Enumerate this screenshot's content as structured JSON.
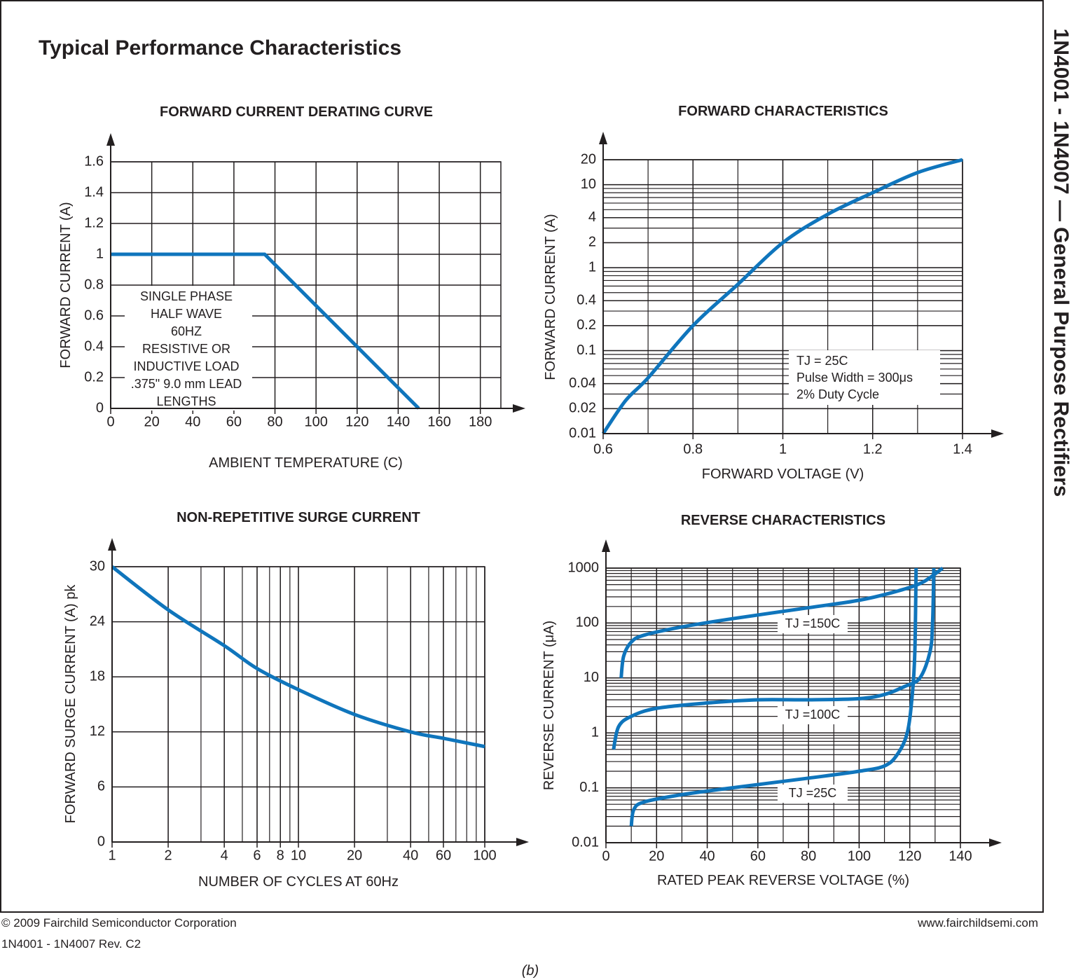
{
  "title": "Typical Performance Characteristics",
  "side_title": "1N4001 - 1N4007 — General Purpose Rectifiers",
  "footer": {
    "copyright": "© 2009 Fairchild Semiconductor Corporation",
    "revision": "1N4001 - 1N4007 Rev. C2",
    "website": "www.fairchildsemi.com"
  },
  "caption": "(b)",
  "chart_data": [
    {
      "type": "line",
      "title": "FORWARD CURRENT DERATING CURVE",
      "x_label": "AMBIENT TEMPERATURE (C)",
      "y_label": "FORWARD CURRENT (A)",
      "x": [
        0,
        75,
        150
      ],
      "values": [
        1,
        1,
        0
      ],
      "color": "#0f75bc",
      "smooth": false,
      "xlim": [
        0,
        190
      ],
      "xticks": [
        0,
        20,
        40,
        60,
        80,
        100,
        120,
        140,
        160,
        180
      ],
      "ylim": [
        0,
        1.6
      ],
      "yticks": [
        0,
        0.2,
        0.4,
        0.6,
        0.8,
        1,
        1.2,
        1.4,
        1.6
      ],
      "grid": true,
      "minor_grid": false,
      "annotation": [
        "SINGLE PHASE",
        "HALF WAVE",
        "60HZ",
        "RESISTIVE OR",
        "INDUCTIVE LOAD",
        ".375\" 9.0 mm LEAD",
        "LENGTHS"
      ]
    },
    {
      "type": "line",
      "title": "FORWARD CHARACTERISTICS",
      "x_label": "FORWARD VOLTAGE (V)",
      "y_label": "FORWARD CURRENT (A)",
      "x": [
        0.6,
        0.65,
        0.7,
        0.8,
        0.9,
        1,
        1.1,
        1.2,
        1.3,
        1.4
      ],
      "values": [
        0.01,
        0.025,
        0.047,
        0.2,
        0.63,
        2,
        4.4,
        8,
        14,
        20
      ],
      "color": "#0f75bc",
      "smooth": true,
      "xlim": [
        0.6,
        1.4
      ],
      "xticks": [
        0.6,
        0.8,
        1,
        1.2,
        1.4
      ],
      "ylim": [
        0.01,
        20
      ],
      "yticks": [
        0.01,
        0.02,
        0.04,
        0.1,
        0.2,
        0.4,
        1,
        2,
        4,
        10,
        20
      ],
      "yscale": "log",
      "grid": true,
      "minor_grid": true,
      "annotation": [
        "TJ = 25C",
        "Pulse Width = 300μs",
        "2% Duty Cycle"
      ]
    },
    {
      "type": "line",
      "title": "NON-REPETITIVE SURGE CURRENT",
      "x_label": "NUMBER OF CYCLES AT 60Hz",
      "y_label": "FORWARD SURGE CURRENT (A) pk",
      "x": [
        1,
        2,
        4,
        6,
        10,
        20,
        40,
        60,
        100
      ],
      "values": [
        30,
        25.3,
        21.4,
        18.9,
        16.6,
        13.9,
        12,
        11.3,
        10.4
      ],
      "color": "#0f75bc",
      "smooth": true,
      "xlim": [
        1,
        100
      ],
      "xticks": [
        1,
        2,
        4,
        6,
        8,
        10,
        20,
        40,
        60,
        100
      ],
      "xscale": "log",
      "ylim": [
        0,
        30
      ],
      "yticks": [
        0,
        6,
        12,
        18,
        24,
        30
      ],
      "grid": true,
      "minor_grid": true
    },
    {
      "type": "line",
      "title": "REVERSE CHARACTERISTICS",
      "x_label": "RATED PEAK REVERSE VOLTAGE (%)",
      "y_label": "REVERSE CURRENT (μA)",
      "series": [
        {
          "name": "TJ =150C",
          "color": "#0f75bc",
          "x": [
            6,
            7,
            10,
            15,
            30,
            50,
            80,
            100,
            115,
            125,
            133
          ],
          "values": [
            10,
            25,
            45,
            60,
            85,
            120,
            190,
            260,
            380,
            550,
            1000
          ]
        },
        {
          "name": "TJ =100C",
          "color": "#0f75bc",
          "x": [
            3,
            5,
            10,
            20,
            40,
            60,
            80,
            100,
            110,
            118,
            124,
            128,
            129,
            129.5
          ],
          "values": [
            0.5,
            1.3,
            2,
            2.8,
            3.5,
            4,
            4,
            4.2,
            5,
            7,
            10,
            30,
            100,
            1000
          ]
        },
        {
          "name": "TJ =25C",
          "color": "#0f75bc",
          "x": [
            10,
            11,
            15,
            30,
            50,
            80,
            100,
            110,
            115,
            119,
            121,
            122,
            122.5
          ],
          "values": [
            0.02,
            0.04,
            0.055,
            0.075,
            0.1,
            0.15,
            0.2,
            0.25,
            0.4,
            1,
            5,
            30,
            1000
          ]
        }
      ],
      "smooth": true,
      "xlim": [
        0,
        140
      ],
      "xticks": [
        0,
        20,
        40,
        60,
        80,
        100,
        120,
        140
      ],
      "ylim": [
        0.01,
        1000
      ],
      "yticks": [
        0.01,
        0.1,
        1,
        10,
        100,
        1000
      ],
      "yscale": "log",
      "grid": true,
      "minor_grid": true
    }
  ]
}
